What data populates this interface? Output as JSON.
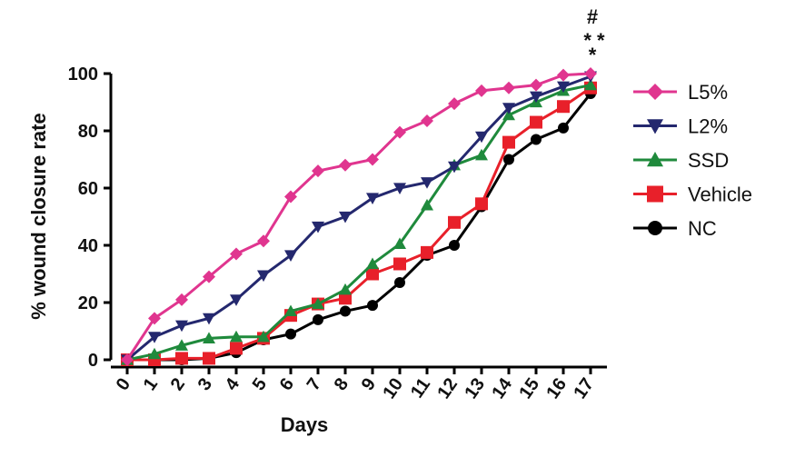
{
  "chart_data": {
    "type": "line",
    "xlabel": "Days",
    "ylabel": "% wound closure rate",
    "xlim": [
      0,
      17
    ],
    "ylim": [
      0,
      100
    ],
    "x": [
      0,
      1,
      2,
      3,
      4,
      5,
      6,
      7,
      8,
      9,
      10,
      11,
      12,
      13,
      14,
      15,
      16,
      17
    ],
    "xticks": [
      "0",
      "1",
      "2",
      "3",
      "4",
      "5",
      "6",
      "7",
      "8",
      "9",
      "10",
      "11",
      "12",
      "13",
      "14",
      "15",
      "16",
      "17"
    ],
    "yticks": [
      "0",
      "20",
      "40",
      "60",
      "80",
      "100"
    ],
    "legend_position": "right",
    "annotations": [
      "#",
      "* *",
      "*"
    ],
    "series": [
      {
        "name": "L5%",
        "color": "#e0358f",
        "marker": "diamond",
        "values": [
          0,
          14.5,
          21,
          29,
          37,
          41.5,
          57,
          66,
          68,
          70,
          79.5,
          83.5,
          89.5,
          94,
          95,
          96,
          99.5,
          100
        ]
      },
      {
        "name": "L2%",
        "color": "#24286e",
        "marker": "triangle-down",
        "values": [
          0,
          8,
          12,
          14.5,
          21,
          29.5,
          36.5,
          46.5,
          50,
          56.5,
          60,
          62,
          67.5,
          78,
          88,
          92,
          95.5,
          99
        ]
      },
      {
        "name": "SSD",
        "color": "#1f8a3c",
        "marker": "triangle-up",
        "values": [
          0,
          2,
          5,
          7.5,
          8,
          8,
          17,
          19.5,
          24.5,
          33.5,
          40.5,
          54,
          68,
          71.5,
          85.5,
          90,
          94,
          96
        ]
      },
      {
        "name": "Vehicle",
        "color": "#e8202a",
        "marker": "square",
        "values": [
          0,
          0,
          0.5,
          0.5,
          4,
          7.5,
          15.5,
          19.5,
          21.5,
          30,
          33.5,
          37.5,
          48,
          54.5,
          76,
          83,
          88.5,
          95
        ]
      },
      {
        "name": "NC",
        "color": "#000000",
        "marker": "circle",
        "values": [
          0,
          0,
          0,
          0.5,
          2.5,
          7,
          9,
          14,
          17,
          19,
          27,
          36.5,
          40,
          53.5,
          70,
          77,
          81,
          93
        ]
      }
    ]
  }
}
